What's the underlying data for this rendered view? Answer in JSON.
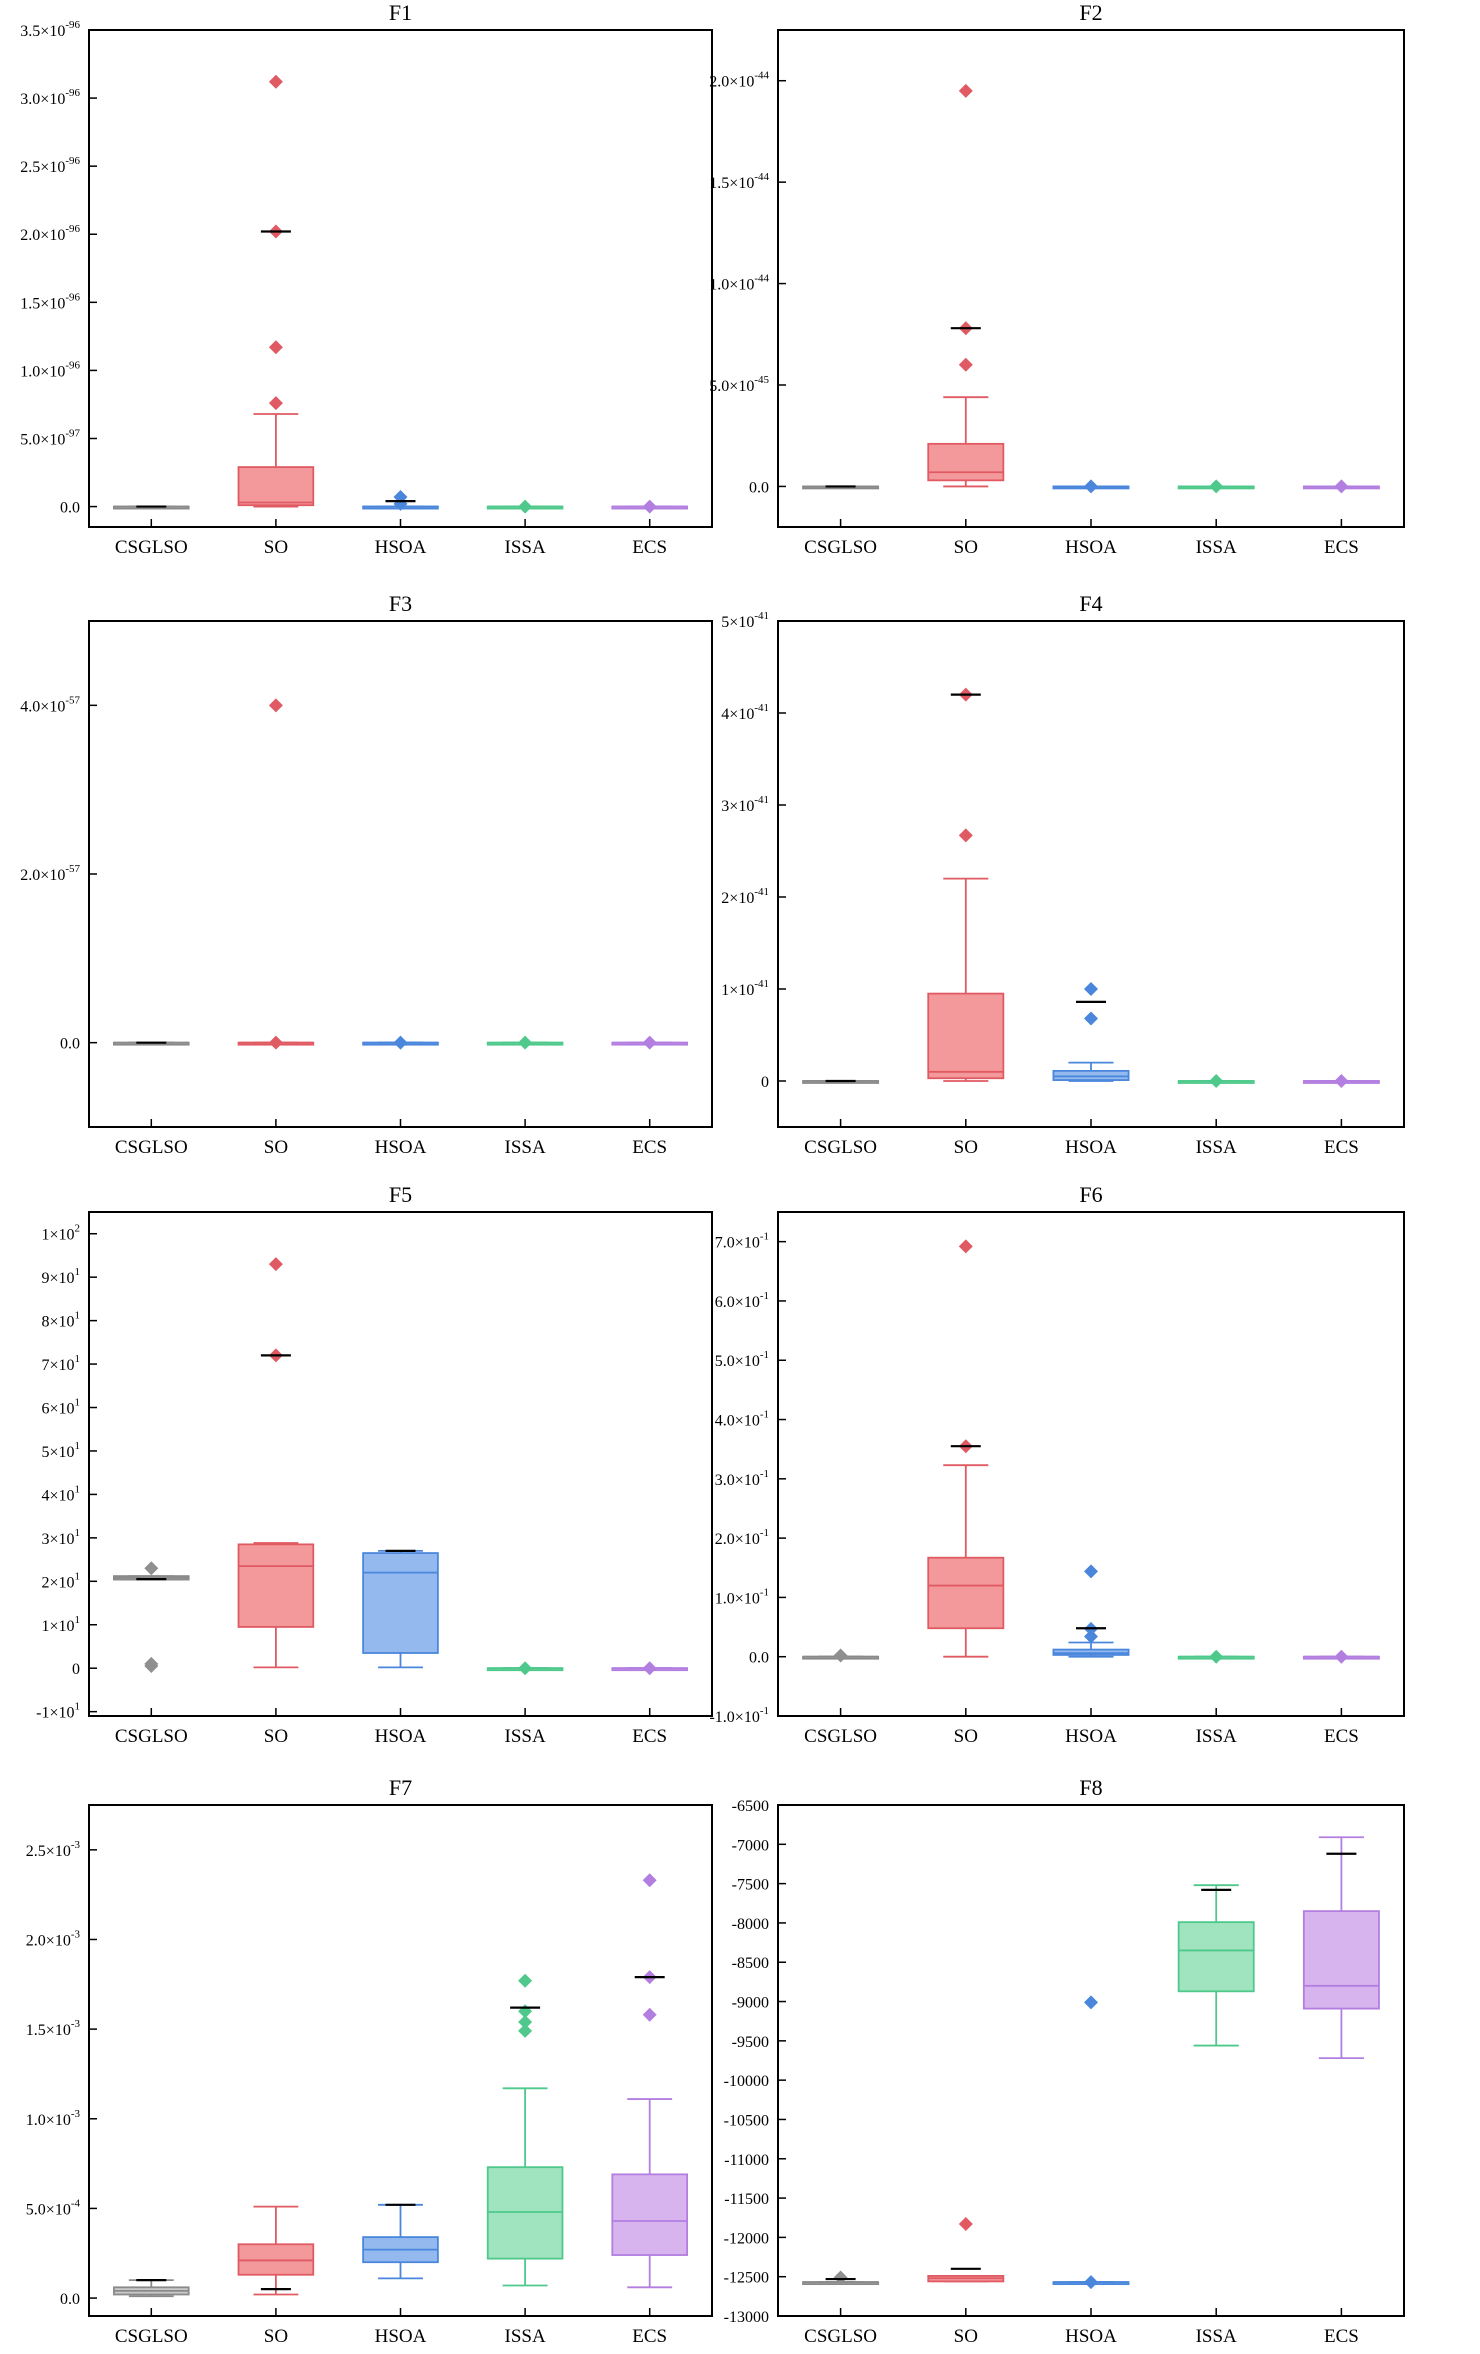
{
  "chart_data": [
    {
      "type": "box",
      "title": "F1",
      "categories": [
        "CSGLSO",
        "SO",
        "HSOA",
        "ISSA",
        "ECS"
      ],
      "ylim": [
        -0.15,
        3.5
      ],
      "exp": -96,
      "yticks": [
        {
          "v": 0.0,
          "m": "0.0",
          "e": ""
        },
        {
          "v": 0.5,
          "m": "5.0×10",
          "e": "-97"
        },
        {
          "v": 1.0,
          "m": "1.0×10",
          "e": "-96"
        },
        {
          "v": 1.5,
          "m": "1.5×10",
          "e": "-96"
        },
        {
          "v": 2.0,
          "m": "2.0×10",
          "e": "-96"
        },
        {
          "v": 2.5,
          "m": "2.5×10",
          "e": "-96"
        },
        {
          "v": 3.0,
          "m": "3.0×10",
          "e": "-96"
        },
        {
          "v": 3.5,
          "m": "3.5×10",
          "e": "-96"
        }
      ],
      "boxes": [
        {
          "wlo": 0,
          "q1": 0,
          "med": 0,
          "q3": 0,
          "whi": 0,
          "outliers": [],
          "mean": 0
        },
        {
          "wlo": 0.0,
          "q1": 0.01,
          "med": 0.03,
          "q3": 0.29,
          "whi": 0.68,
          "outliers": [
            0.76,
            1.17,
            2.02,
            3.12
          ],
          "mean": 2.02
        },
        {
          "wlo": 0,
          "q1": 0,
          "med": 0,
          "q3": 0,
          "whi": 0,
          "outliers": [
            0.02,
            0.07
          ],
          "mean": 0.04
        },
        {
          "wlo": 0,
          "q1": 0,
          "med": 0,
          "q3": 0,
          "whi": 0,
          "outliers": [
            0
          ],
          "mean": null
        },
        {
          "wlo": 0,
          "q1": 0,
          "med": 0,
          "q3": 0,
          "whi": 0,
          "outliers": [
            0
          ],
          "mean": null
        }
      ]
    },
    {
      "type": "box",
      "title": "F2",
      "categories": [
        "CSGLSO",
        "SO",
        "HSOA",
        "ISSA",
        "ECS"
      ],
      "ylim": [
        -0.2,
        2.25
      ],
      "exp": -44,
      "yticks": [
        {
          "v": 0.0,
          "m": "0.0",
          "e": ""
        },
        {
          "v": 0.5,
          "m": "5.0×10",
          "e": "-45"
        },
        {
          "v": 1.0,
          "m": "1.0×10",
          "e": "-44"
        },
        {
          "v": 1.5,
          "m": "1.5×10",
          "e": "-44"
        },
        {
          "v": 2.0,
          "m": "2.0×10",
          "e": "-44"
        }
      ],
      "boxes": [
        {
          "wlo": 0,
          "q1": 0,
          "med": 0,
          "q3": 0,
          "whi": 0,
          "outliers": [],
          "mean": 0
        },
        {
          "wlo": 0.0,
          "q1": 0.03,
          "med": 0.07,
          "q3": 0.21,
          "whi": 0.44,
          "outliers": [
            0.6,
            0.78,
            1.95
          ],
          "mean": 0.78
        },
        {
          "wlo": 0,
          "q1": 0,
          "med": 0,
          "q3": 0,
          "whi": 0,
          "outliers": [
            0
          ],
          "mean": null
        },
        {
          "wlo": 0,
          "q1": 0,
          "med": 0,
          "q3": 0,
          "whi": 0,
          "outliers": [
            0
          ],
          "mean": null
        },
        {
          "wlo": 0,
          "q1": 0,
          "med": 0,
          "q3": 0,
          "whi": 0,
          "outliers": [
            0
          ],
          "mean": null
        }
      ]
    },
    {
      "type": "box",
      "title": "F3",
      "categories": [
        "CSGLSO",
        "SO",
        "HSOA",
        "ISSA",
        "ECS"
      ],
      "ylim": [
        -1.0,
        5.0
      ],
      "exp": -57,
      "yticks": [
        {
          "v": 0.0,
          "m": "0.0",
          "e": ""
        },
        {
          "v": 2.0,
          "m": "2.0×10",
          "e": "-57"
        },
        {
          "v": 4.0,
          "m": "4.0×10",
          "e": "-57"
        }
      ],
      "boxes": [
        {
          "wlo": 0,
          "q1": 0,
          "med": 0,
          "q3": 0,
          "whi": 0,
          "outliers": [],
          "mean": 0
        },
        {
          "wlo": 0,
          "q1": 0,
          "med": 0,
          "q3": 0,
          "whi": 0,
          "outliers": [
            0.0,
            4.0
          ],
          "mean": null
        },
        {
          "wlo": 0,
          "q1": 0,
          "med": 0,
          "q3": 0,
          "whi": 0,
          "outliers": [
            0
          ],
          "mean": null
        },
        {
          "wlo": 0,
          "q1": 0,
          "med": 0,
          "q3": 0,
          "whi": 0,
          "outliers": [
            0
          ],
          "mean": null
        },
        {
          "wlo": 0,
          "q1": 0,
          "med": 0,
          "q3": 0,
          "whi": 0,
          "outliers": [
            0
          ],
          "mean": null
        }
      ]
    },
    {
      "type": "box",
      "title": "F4",
      "categories": [
        "CSGLSO",
        "SO",
        "HSOA",
        "ISSA",
        "ECS"
      ],
      "ylim": [
        -0.5,
        5.0
      ],
      "exp": -41,
      "yticks": [
        {
          "v": 0.0,
          "m": "0",
          "e": ""
        },
        {
          "v": 1.0,
          "m": "1×10",
          "e": "-41"
        },
        {
          "v": 2.0,
          "m": "2×10",
          "e": "-41"
        },
        {
          "v": 3.0,
          "m": "3×10",
          "e": "-41"
        },
        {
          "v": 4.0,
          "m": "4×10",
          "e": "-41"
        },
        {
          "v": 5.0,
          "m": "5×10",
          "e": "-41"
        }
      ],
      "boxes": [
        {
          "wlo": 0,
          "q1": 0,
          "med": 0,
          "q3": 0,
          "whi": 0,
          "outliers": [],
          "mean": 0
        },
        {
          "wlo": 0.0,
          "q1": 0.03,
          "med": 0.1,
          "q3": 0.95,
          "whi": 2.2,
          "outliers": [
            2.67,
            4.2
          ],
          "mean": 4.2
        },
        {
          "wlo": 0.0,
          "q1": 0.01,
          "med": 0.05,
          "q3": 0.11,
          "whi": 0.2,
          "outliers": [
            0.68,
            1.0
          ],
          "mean": 0.86
        },
        {
          "wlo": 0,
          "q1": 0,
          "med": 0,
          "q3": 0,
          "whi": 0,
          "outliers": [
            0
          ],
          "mean": null
        },
        {
          "wlo": 0,
          "q1": 0,
          "med": 0,
          "q3": 0,
          "whi": 0,
          "outliers": [
            0
          ],
          "mean": null
        }
      ]
    },
    {
      "type": "box",
      "title": "F5",
      "categories": [
        "CSGLSO",
        "SO",
        "HSOA",
        "ISSA",
        "ECS"
      ],
      "ylim": [
        -11,
        105
      ],
      "exp": 0,
      "yticks": [
        {
          "v": -10,
          "m": "-1×10",
          "e": "1"
        },
        {
          "v": 0,
          "m": "0",
          "e": ""
        },
        {
          "v": 10,
          "m": "1×10",
          "e": "1"
        },
        {
          "v": 20,
          "m": "2×10",
          "e": "1"
        },
        {
          "v": 30,
          "m": "3×10",
          "e": "1"
        },
        {
          "v": 40,
          "m": "4×10",
          "e": "1"
        },
        {
          "v": 50,
          "m": "5×10",
          "e": "1"
        },
        {
          "v": 60,
          "m": "6×10",
          "e": "1"
        },
        {
          "v": 70,
          "m": "7×10",
          "e": "1"
        },
        {
          "v": 80,
          "m": "8×10",
          "e": "1"
        },
        {
          "v": 90,
          "m": "9×10",
          "e": "1"
        },
        {
          "v": 100,
          "m": "1×10",
          "e": "2"
        }
      ],
      "boxes": [
        {
          "wlo": 20.4,
          "q1": 20.4,
          "med": 20.8,
          "q3": 21.2,
          "whi": 21.2,
          "outliers": [
            0.5,
            1.0,
            23.0
          ],
          "mean": 20.5
        },
        {
          "wlo": 0.2,
          "q1": 9.5,
          "med": 23.5,
          "q3": 28.5,
          "whi": 28.8,
          "outliers": [
            72,
            93
          ],
          "mean": 72
        },
        {
          "wlo": 0.2,
          "q1": 3.5,
          "med": 22.0,
          "q3": 26.5,
          "whi": 27.0,
          "outliers": [],
          "mean": 27.0
        },
        {
          "wlo": 0,
          "q1": 0,
          "med": 0,
          "q3": 0,
          "whi": 0,
          "outliers": [
            0
          ],
          "mean": null
        },
        {
          "wlo": 0,
          "q1": 0,
          "med": 0,
          "q3": 0,
          "whi": 0,
          "outliers": [
            0
          ],
          "mean": null
        }
      ]
    },
    {
      "type": "box",
      "title": "F6",
      "categories": [
        "CSGLSO",
        "SO",
        "HSOA",
        "ISSA",
        "ECS"
      ],
      "ylim": [
        -0.1,
        0.75
      ],
      "exp": -1,
      "yticks": [
        {
          "v": -0.1,
          "m": "-1.0×10",
          "e": "-1"
        },
        {
          "v": 0.0,
          "m": "0.0",
          "e": ""
        },
        {
          "v": 0.1,
          "m": "1.0×10",
          "e": "-1"
        },
        {
          "v": 0.2,
          "m": "2.0×10",
          "e": "-1"
        },
        {
          "v": 0.3,
          "m": "3.0×10",
          "e": "-1"
        },
        {
          "v": 0.4,
          "m": "4.0×10",
          "e": "-1"
        },
        {
          "v": 0.5,
          "m": "5.0×10",
          "e": "-1"
        },
        {
          "v": 0.6,
          "m": "6.0×10",
          "e": "-1"
        },
        {
          "v": 0.7,
          "m": "7.0×10",
          "e": "-1"
        }
      ],
      "boxes": [
        {
          "wlo": 0,
          "q1": 0,
          "med": 0,
          "q3": 0,
          "whi": 0,
          "outliers": [
            0.002
          ],
          "mean": null
        },
        {
          "wlo": 0.0,
          "q1": 0.048,
          "med": 0.12,
          "q3": 0.167,
          "whi": 0.323,
          "outliers": [
            0.355,
            0.692
          ],
          "mean": 0.355
        },
        {
          "wlo": 0.0,
          "q1": 0.003,
          "med": 0.006,
          "q3": 0.012,
          "whi": 0.024,
          "outliers": [
            0.034,
            0.047,
            0.144
          ],
          "mean": 0.048
        },
        {
          "wlo": 0,
          "q1": 0,
          "med": 0,
          "q3": 0,
          "whi": 0,
          "outliers": [
            0
          ],
          "mean": null
        },
        {
          "wlo": 0,
          "q1": 0,
          "med": 0,
          "q3": 0,
          "whi": 0,
          "outliers": [
            0
          ],
          "mean": null
        }
      ]
    },
    {
      "type": "box",
      "title": "F7",
      "categories": [
        "CSGLSO",
        "SO",
        "HSOA",
        "ISSA",
        "ECS"
      ],
      "ylim": [
        -0.1,
        2.75
      ],
      "exp": -3,
      "yticks": [
        {
          "v": 0.0,
          "m": "0.0",
          "e": ""
        },
        {
          "v": 0.5,
          "m": "5.0×10",
          "e": "-4"
        },
        {
          "v": 1.0,
          "m": "1.0×10",
          "e": "-3"
        },
        {
          "v": 1.5,
          "m": "1.5×10",
          "e": "-3"
        },
        {
          "v": 2.0,
          "m": "2.0×10",
          "e": "-3"
        },
        {
          "v": 2.5,
          "m": "2.5×10",
          "e": "-3"
        }
      ],
      "boxes": [
        {
          "wlo": 0.01,
          "q1": 0.02,
          "med": 0.04,
          "q3": 0.06,
          "whi": 0.1,
          "outliers": [],
          "mean": 0.1
        },
        {
          "wlo": 0.02,
          "q1": 0.13,
          "med": 0.21,
          "q3": 0.3,
          "whi": 0.51,
          "outliers": [],
          "mean": 0.05
        },
        {
          "wlo": 0.11,
          "q1": 0.2,
          "med": 0.27,
          "q3": 0.34,
          "whi": 0.52,
          "outliers": [],
          "mean": 0.52
        },
        {
          "wlo": 0.07,
          "q1": 0.22,
          "med": 0.48,
          "q3": 0.73,
          "whi": 1.17,
          "outliers": [
            1.49,
            1.54,
            1.6,
            1.77
          ],
          "mean": 1.62
        },
        {
          "wlo": 0.06,
          "q1": 0.24,
          "med": 0.43,
          "q3": 0.69,
          "whi": 1.11,
          "outliers": [
            1.58,
            1.79,
            2.33
          ],
          "mean": 1.79
        }
      ]
    },
    {
      "type": "box",
      "title": "F8",
      "categories": [
        "CSGLSO",
        "SO",
        "HSOA",
        "ISSA",
        "ECS"
      ],
      "ylim": [
        -13000,
        -6500
      ],
      "exp": 0,
      "yticks": [
        {
          "v": -13000,
          "m": "-13000",
          "e": ""
        },
        {
          "v": -12500,
          "m": "-12500",
          "e": ""
        },
        {
          "v": -12000,
          "m": "-12000",
          "e": ""
        },
        {
          "v": -11500,
          "m": "-11500",
          "e": ""
        },
        {
          "v": -11000,
          "m": "-11000",
          "e": ""
        },
        {
          "v": -10500,
          "m": "-10500",
          "e": ""
        },
        {
          "v": -10000,
          "m": "-10000",
          "e": ""
        },
        {
          "v": -9500,
          "m": "-9500",
          "e": ""
        },
        {
          "v": -9000,
          "m": "-9000",
          "e": ""
        },
        {
          "v": -8500,
          "m": "-8500",
          "e": ""
        },
        {
          "v": -8000,
          "m": "-8000",
          "e": ""
        },
        {
          "v": -7500,
          "m": "-7500",
          "e": ""
        },
        {
          "v": -7000,
          "m": "-7000",
          "e": ""
        },
        {
          "v": -6500,
          "m": "-6500",
          "e": ""
        }
      ],
      "boxes": [
        {
          "wlo": -12569,
          "q1": -12569,
          "med": -12569,
          "q3": -12569,
          "whi": -12569,
          "outliers": [
            -12510
          ],
          "mean": -12530
        },
        {
          "wlo": -12560,
          "q1": -12560,
          "med": -12520,
          "q3": -12490,
          "whi": -12490,
          "outliers": [
            -11830
          ],
          "mean": -12400
        },
        {
          "wlo": -12569,
          "q1": -12569,
          "med": -12569,
          "q3": -12569,
          "whi": -12569,
          "outliers": [
            -9010,
            -12569
          ],
          "mean": null
        },
        {
          "wlo": -9560,
          "q1": -8870,
          "med": -8350,
          "q3": -7990,
          "whi": -7520,
          "outliers": [],
          "mean": -7580
        },
        {
          "wlo": -9720,
          "q1": -9090,
          "med": -8800,
          "q3": -7850,
          "whi": -6910,
          "outliers": [],
          "mean": -7120
        }
      ]
    }
  ],
  "series_colors": {
    "CSGLSO": {
      "fill": "#c9c9c9",
      "edge": "#8a8a8a",
      "marker": "#8f8f8f"
    },
    "SO": {
      "fill": "#f4999b",
      "edge": "#e05a63",
      "marker": "#e05a63"
    },
    "HSOA": {
      "fill": "#93b9ee",
      "edge": "#4a86dc",
      "marker": "#4a86dc"
    },
    "ISSA": {
      "fill": "#9fe3bf",
      "edge": "#4fc98b",
      "marker": "#4fc98b"
    },
    "ECS": {
      "fill": "#d8b4ee",
      "edge": "#b27ee0",
      "marker": "#b27ee0"
    }
  }
}
